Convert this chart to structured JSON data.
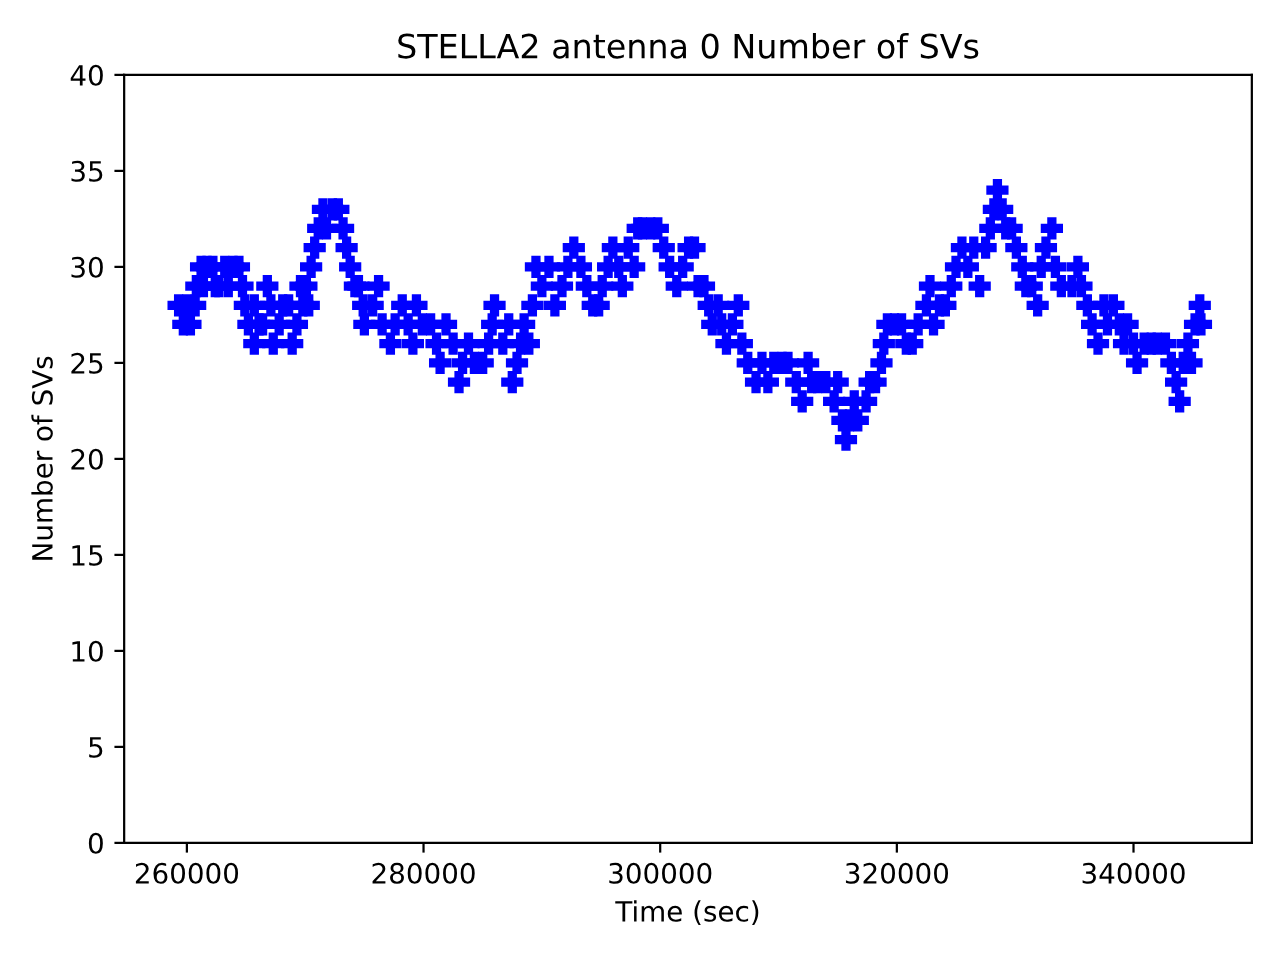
{
  "chart_data": {
    "type": "scatter",
    "title": "STELLA2 antenna 0 Number of SVs",
    "xlabel": "Time (sec)",
    "ylabel": "Number of SVs",
    "xlim": [
      254700,
      350000
    ],
    "xticks": [
      260000,
      280000,
      300000,
      320000,
      340000
    ],
    "ylim": [
      0,
      40
    ],
    "yticks": [
      0,
      5,
      10,
      15,
      20,
      25,
      30,
      35,
      40
    ],
    "marker": "cross",
    "grid": false,
    "series": [
      {
        "color": "#0000ff",
        "x": [
          259300,
          259700,
          260000,
          260300,
          260700,
          260800,
          261200,
          261400,
          261700,
          262200,
          262400,
          262700,
          263200,
          263500,
          263900,
          264400,
          264700,
          264900,
          265200,
          265700,
          265700,
          266100,
          266400,
          266800,
          267100,
          267300,
          267800,
          268100,
          268600,
          268900,
          269300,
          269600,
          269800,
          270100,
          270300,
          270500,
          270800,
          271100,
          271500,
          271800,
          272300,
          272800,
          273200,
          273500,
          273800,
          274200,
          274500,
          274900,
          275000,
          275700,
          276200,
          276500,
          277200,
          277600,
          278200,
          278700,
          279100,
          279400,
          279900,
          280600,
          281100,
          281400,
          281900,
          282500,
          283000,
          283300,
          283800,
          284300,
          285000,
          285500,
          285800,
          286000,
          286700,
          287200,
          287500,
          287900,
          288200,
          288500,
          288900,
          289200,
          289500,
          290000,
          290600,
          291100,
          291700,
          292200,
          292700,
          293300,
          293800,
          294300,
          294800,
          295100,
          295600,
          296000,
          296500,
          296800,
          297300,
          297800,
          298100,
          298500,
          299200,
          299800,
          300300,
          300800,
          301400,
          301900,
          302400,
          302900,
          303200,
          303700,
          304100,
          304400,
          304900,
          305200,
          305600,
          306100,
          306600,
          306900,
          307400,
          308100,
          308600,
          309100,
          309600,
          310300,
          310800,
          311500,
          312000,
          312500,
          312800,
          313300,
          314000,
          314700,
          315000,
          315400,
          315700,
          316000,
          316400,
          316700,
          317400,
          317700,
          318200,
          318700,
          318900,
          319200,
          319800,
          320400,
          320800,
          321300,
          321800,
          322500,
          322800,
          323100,
          323600,
          324100,
          324600,
          325000,
          325500,
          326000,
          326500,
          327000,
          327500,
          327900,
          328200,
          328500,
          328900,
          329200,
          329700,
          330100,
          330600,
          330900,
          331400,
          331900,
          332200,
          332600,
          333100,
          333400,
          333900,
          334800,
          335300,
          335600,
          336100,
          336500,
          337000,
          337500,
          337800,
          338300,
          338800,
          339200,
          339500,
          340000,
          340300,
          340900,
          341500,
          342000,
          342700,
          343200,
          343600,
          343900,
          344200,
          344600,
          344900,
          345200,
          345600,
          345700
        ],
        "values": [
          28,
          27,
          28,
          27,
          28,
          29,
          30,
          29,
          30,
          30,
          29,
          29,
          30,
          29,
          30,
          30,
          29,
          28,
          27,
          26,
          28,
          27,
          27,
          29,
          28,
          26,
          27,
          28,
          28,
          26,
          27,
          29,
          28,
          29,
          28,
          30,
          31,
          32,
          33,
          32,
          33,
          33,
          32,
          31,
          30,
          29,
          29,
          28,
          27,
          28,
          29,
          27,
          26,
          27,
          28,
          27,
          26,
          28,
          27,
          27,
          26,
          25,
          27,
          26,
          24,
          25,
          26,
          25,
          25,
          26,
          27,
          28,
          26,
          27,
          24,
          25,
          26,
          27,
          26,
          28,
          30,
          29,
          30,
          28,
          29,
          30,
          31,
          30,
          29,
          28,
          28,
          29,
          30,
          31,
          30,
          29,
          31,
          30,
          32,
          32,
          32,
          32,
          31,
          30,
          29,
          30,
          31,
          31,
          29,
          29,
          28,
          27,
          28,
          27,
          26,
          27,
          28,
          26,
          25,
          24,
          25,
          24,
          25,
          25,
          25,
          24,
          23,
          25,
          24,
          24,
          24,
          23,
          24,
          22,
          21,
          22,
          23,
          22,
          23,
          24,
          24,
          25,
          26,
          27,
          27,
          27,
          26,
          26,
          27,
          28,
          29,
          27,
          28,
          28,
          29,
          30,
          31,
          30,
          31,
          29,
          31,
          32,
          33,
          34,
          33,
          32,
          32,
          31,
          30,
          29,
          29,
          28,
          30,
          31,
          32,
          30,
          29,
          29,
          30,
          29,
          28,
          27,
          26,
          28,
          27,
          28,
          27,
          26,
          27,
          26,
          25,
          26,
          26,
          26,
          26,
          25,
          24,
          23,
          25,
          26,
          25,
          27,
          28,
          27
        ]
      }
    ]
  }
}
